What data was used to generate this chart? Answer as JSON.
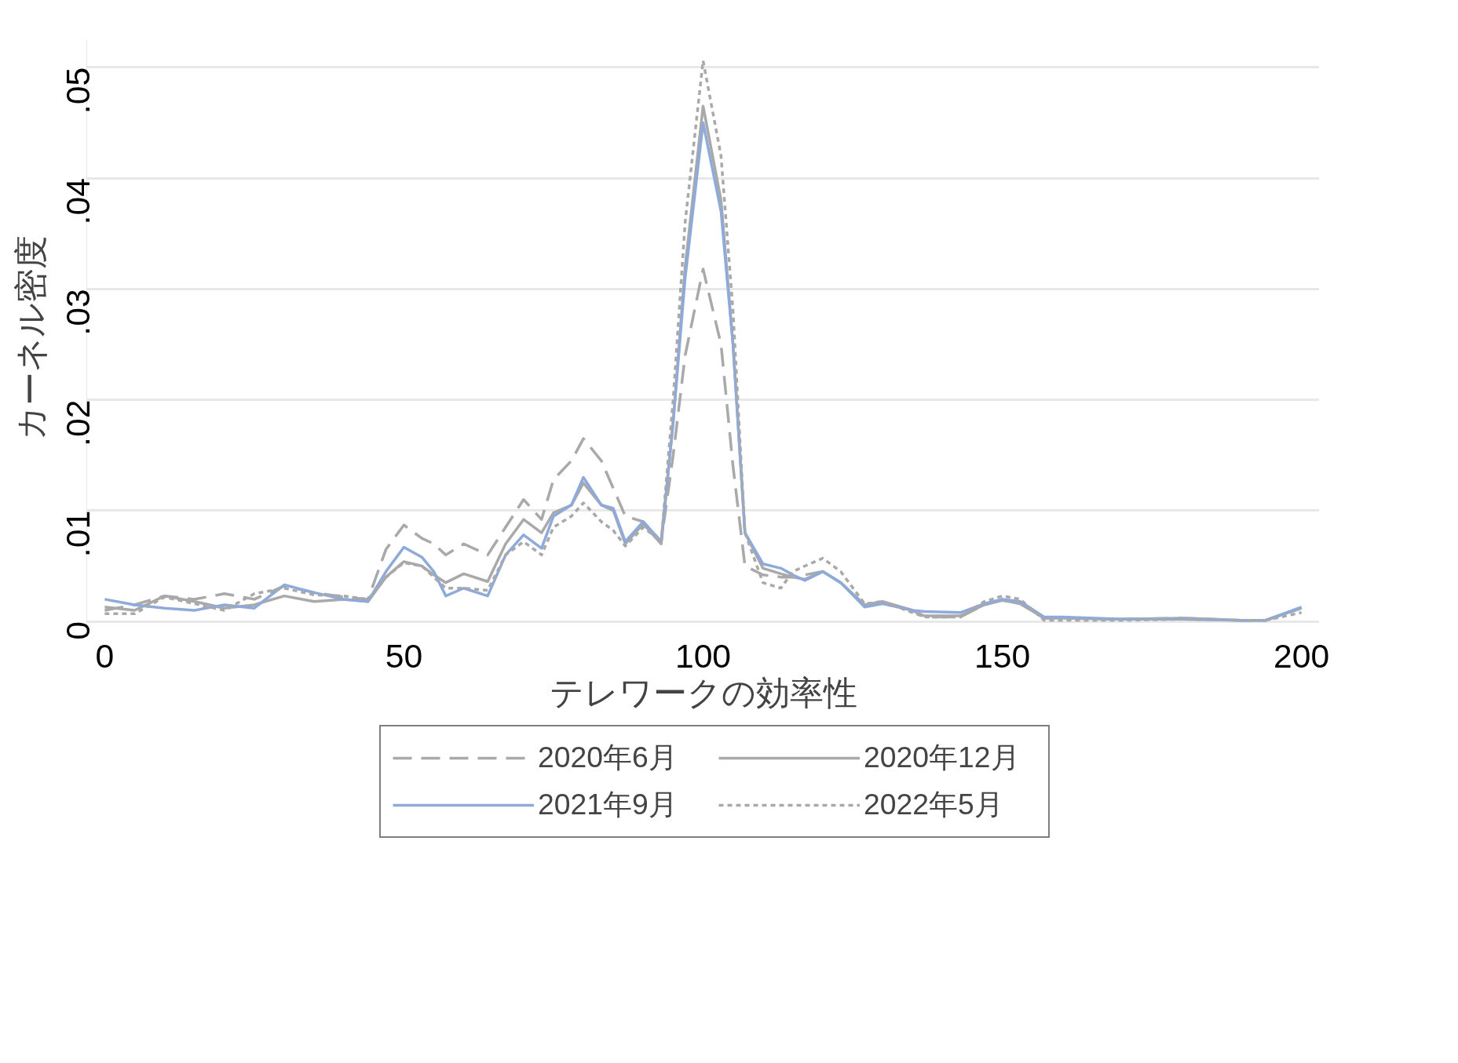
{
  "chart_data": {
    "type": "line",
    "xlabel": "テレワークの効率性",
    "ylabel": "カーネル密度",
    "x": [
      0,
      5,
      10,
      15,
      20,
      25,
      30,
      35,
      40,
      44,
      47,
      50,
      53,
      55,
      57,
      60,
      64,
      67,
      70,
      73,
      75,
      78,
      80,
      83,
      85,
      87,
      90,
      93,
      95,
      97,
      100,
      103,
      105,
      107,
      110,
      113,
      115,
      117,
      120,
      123,
      127,
      130,
      135,
      137,
      143,
      147,
      150,
      153,
      157,
      160,
      170,
      180,
      190,
      194,
      200
    ],
    "series": [
      {
        "name": "2020年6月",
        "color": "#a9a9a9",
        "line_style": "dashed",
        "values": [
          0.001,
          0.0015,
          0.0023,
          0.002,
          0.0025,
          0.002,
          0.0032,
          0.0026,
          0.0022,
          0.002,
          0.0065,
          0.0087,
          0.0075,
          0.007,
          0.006,
          0.007,
          0.006,
          0.0085,
          0.011,
          0.0092,
          0.0128,
          0.0145,
          0.0165,
          0.0145,
          0.012,
          0.0095,
          0.009,
          0.0072,
          0.015,
          0.024,
          0.0318,
          0.025,
          0.014,
          0.005,
          0.0042,
          0.004,
          0.004,
          0.0042,
          0.0045,
          0.0035,
          0.0015,
          0.0017,
          0.001,
          0.0004,
          0.0004,
          0.0015,
          0.002,
          0.0016,
          0.0003,
          0.0003,
          0.0002,
          0.0003,
          0.0001,
          0.0001,
          0.0012
        ]
      },
      {
        "name": "2020年12月",
        "color": "#a9a9a9",
        "line_style": "solid",
        "values": [
          0.0013,
          0.001,
          0.0023,
          0.0018,
          0.0012,
          0.0015,
          0.0023,
          0.0018,
          0.002,
          0.0018,
          0.004,
          0.0054,
          0.005,
          0.0042,
          0.0035,
          0.0043,
          0.0036,
          0.007,
          0.0092,
          0.008,
          0.0098,
          0.0105,
          0.0125,
          0.0105,
          0.01,
          0.007,
          0.0088,
          0.007,
          0.018,
          0.032,
          0.0465,
          0.038,
          0.025,
          0.008,
          0.0048,
          0.0043,
          0.004,
          0.0038,
          0.0045,
          0.0035,
          0.0015,
          0.0018,
          0.001,
          0.0005,
          0.0005,
          0.0015,
          0.0019,
          0.0016,
          0.0003,
          0.0003,
          0.0002,
          0.0003,
          0.0001,
          0.0001,
          0.0012
        ]
      },
      {
        "name": "2021年9月",
        "color": "#8eaadb",
        "line_style": "solid",
        "values": [
          0.002,
          0.0015,
          0.0012,
          0.001,
          0.0015,
          0.0012,
          0.0033,
          0.0026,
          0.002,
          0.0018,
          0.0045,
          0.0067,
          0.0058,
          0.0045,
          0.0023,
          0.003,
          0.0023,
          0.006,
          0.0078,
          0.0066,
          0.0095,
          0.0105,
          0.013,
          0.0105,
          0.0102,
          0.0072,
          0.009,
          0.0072,
          0.018,
          0.031,
          0.045,
          0.037,
          0.025,
          0.008,
          0.0052,
          0.0048,
          0.0042,
          0.0037,
          0.0045,
          0.0035,
          0.0013,
          0.0016,
          0.001,
          0.0009,
          0.0008,
          0.0016,
          0.002,
          0.0018,
          0.0004,
          0.0004,
          0.0002,
          0.0002,
          0.0001,
          0.0001,
          0.0013
        ]
      },
      {
        "name": "2022年5月",
        "color": "#a9a9a9",
        "line_style": "dotted",
        "values": [
          0.0007,
          0.0007,
          0.0022,
          0.0016,
          0.001,
          0.0025,
          0.003,
          0.0024,
          0.0023,
          0.002,
          0.004,
          0.0053,
          0.005,
          0.004,
          0.003,
          0.003,
          0.0028,
          0.006,
          0.0072,
          0.006,
          0.0085,
          0.0095,
          0.0107,
          0.009,
          0.0082,
          0.0068,
          0.0085,
          0.0072,
          0.02,
          0.036,
          0.0506,
          0.042,
          0.028,
          0.008,
          0.0035,
          0.003,
          0.0045,
          0.005,
          0.0057,
          0.0045,
          0.0016,
          0.0018,
          0.0008,
          0.0004,
          0.0004,
          0.0018,
          0.0023,
          0.002,
          0.0001,
          0.0001,
          0.0001,
          0.0002,
          0.0001,
          0.0001,
          0.0008
        ]
      }
    ],
    "xlim": [
      -3,
      203
    ],
    "ylim": [
      -0.0013,
      0.0525
    ],
    "xticks": [
      0,
      50,
      100,
      150,
      200
    ],
    "yticks": [
      {
        "value": 0,
        "label": "0"
      },
      {
        "value": 0.01,
        "label": ".01"
      },
      {
        "value": 0.02,
        "label": ".02"
      },
      {
        "value": 0.03,
        "label": ".03"
      },
      {
        "value": 0.04,
        "label": ".04"
      },
      {
        "value": 0.05,
        "label": ".05"
      }
    ],
    "grid": "y",
    "legend": "bottom"
  }
}
